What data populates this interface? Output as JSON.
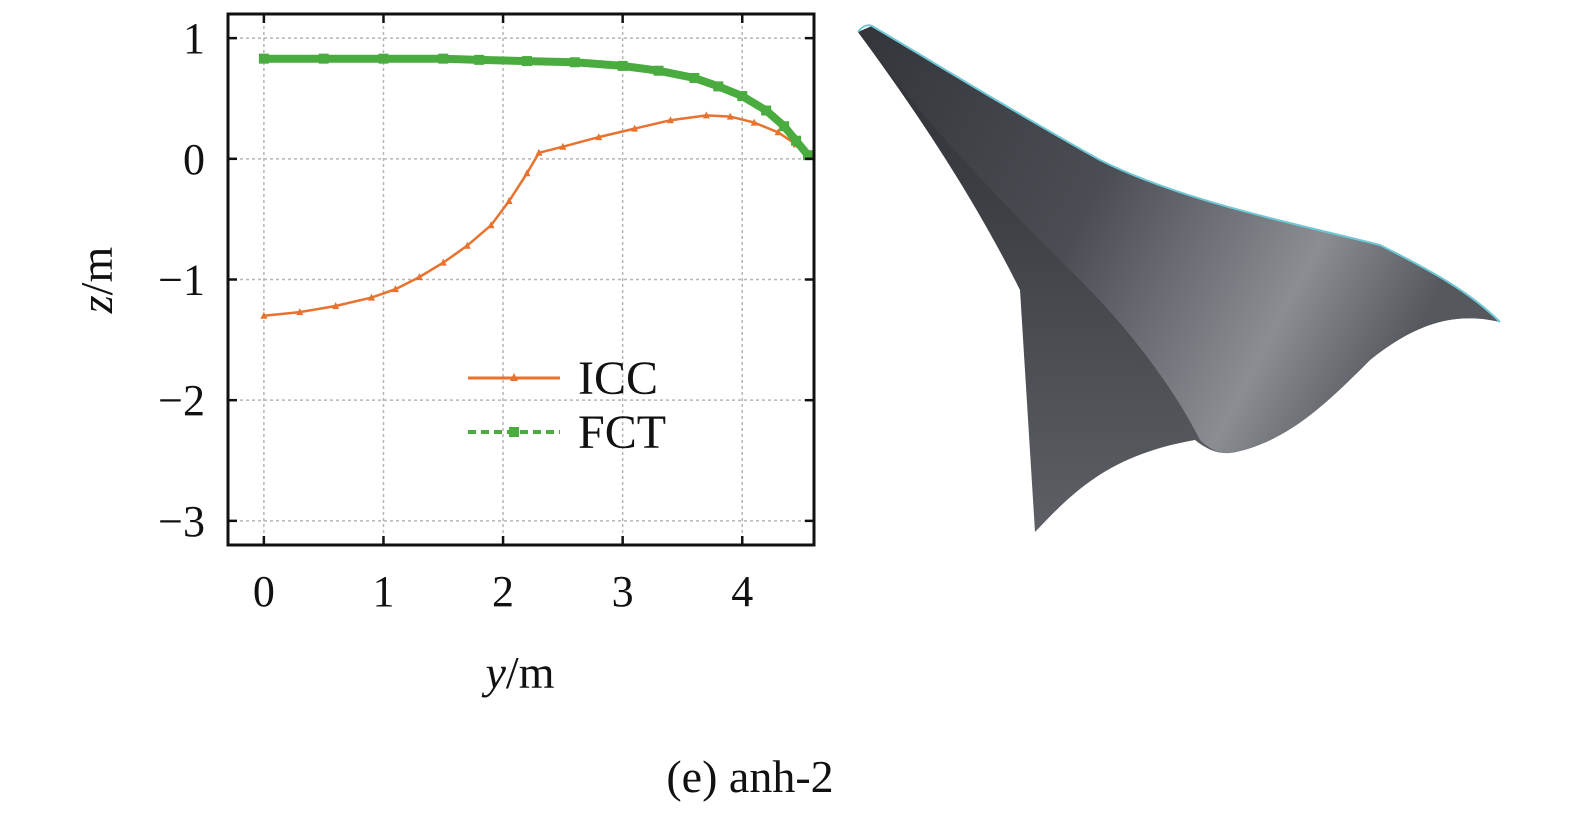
{
  "chart_data": {
    "type": "line",
    "xlabel_var": "y",
    "xlabel_unit": "/m",
    "ylabel_var": "z",
    "ylabel_unit": "/m",
    "xlim": [
      -0.3,
      4.6
    ],
    "ylim": [
      -3.2,
      1.2
    ],
    "xticks": [
      0,
      1,
      2,
      3,
      4
    ],
    "yticks": [
      1,
      0,
      -1,
      -2,
      -3
    ],
    "ytick_labels": [
      "1",
      "0",
      "−1",
      "−2",
      "−3"
    ],
    "grid": true,
    "legend_position": "center-right",
    "series": [
      {
        "name": "ICC",
        "color": "#e8722e",
        "marker": "triangle",
        "x": [
          0,
          0.3,
          0.6,
          0.9,
          1.1,
          1.3,
          1.5,
          1.7,
          1.9,
          2.05,
          2.2,
          2.3,
          2.5,
          2.8,
          3.1,
          3.4,
          3.7,
          3.9,
          4.1,
          4.3,
          4.45,
          4.55
        ],
        "y": [
          -1.3,
          -1.27,
          -1.22,
          -1.15,
          -1.08,
          -0.98,
          -0.86,
          -0.72,
          -0.55,
          -0.35,
          -0.12,
          0.05,
          0.1,
          0.18,
          0.25,
          0.32,
          0.36,
          0.35,
          0.3,
          0.22,
          0.12,
          0.03
        ]
      },
      {
        "name": "FCT",
        "color": "#4aac3e",
        "marker": "square",
        "x": [
          0,
          0.5,
          1.0,
          1.5,
          1.8,
          2.2,
          2.6,
          3.0,
          3.3,
          3.6,
          3.8,
          4.0,
          4.2,
          4.35,
          4.45,
          4.55
        ],
        "y": [
          0.83,
          0.83,
          0.83,
          0.83,
          0.82,
          0.81,
          0.8,
          0.77,
          0.73,
          0.67,
          0.6,
          0.52,
          0.4,
          0.27,
          0.15,
          0.03
        ]
      }
    ]
  },
  "caption": "(e) anh-2",
  "illustration": {
    "name": "aircraft-3d-shape",
    "surface_color": "#4a4c52",
    "edge_color": "#6fc8d6"
  }
}
